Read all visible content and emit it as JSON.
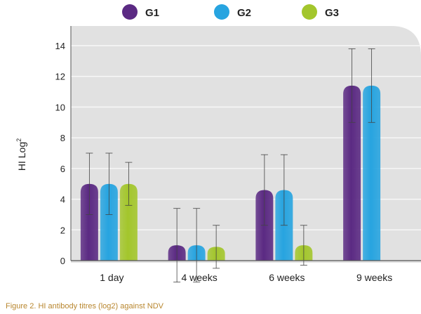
{
  "chart_data": {
    "type": "bar",
    "categories": [
      "1 day",
      "4 weeks",
      "6 weeks",
      "9 weeks"
    ],
    "series": [
      {
        "name": "G1",
        "color": "#5b2a83",
        "values": [
          5.0,
          1.0,
          4.6,
          11.4
        ],
        "errors": [
          2.0,
          2.4,
          2.3,
          2.4
        ]
      },
      {
        "name": "G2",
        "color": "#27a4e0",
        "values": [
          5.0,
          1.0,
          4.6,
          11.4
        ],
        "errors": [
          2.0,
          2.4,
          2.3,
          2.4
        ]
      },
      {
        "name": "G3",
        "color": "#a3c62c",
        "values": [
          5.0,
          0.9,
          1.0,
          null
        ],
        "errors": [
          1.4,
          1.4,
          1.3,
          null
        ]
      }
    ],
    "yticks": [
      "0",
      "2",
      "4",
      "6",
      "8",
      "10",
      "12",
      "14"
    ],
    "ylim": [
      0,
      14
    ],
    "ylabel": "HI  Log",
    "ylabel_sup": "2",
    "grid": true,
    "legend_position": "top"
  },
  "caption": "Figure 2. HI antibody titres (log2) against NDV"
}
